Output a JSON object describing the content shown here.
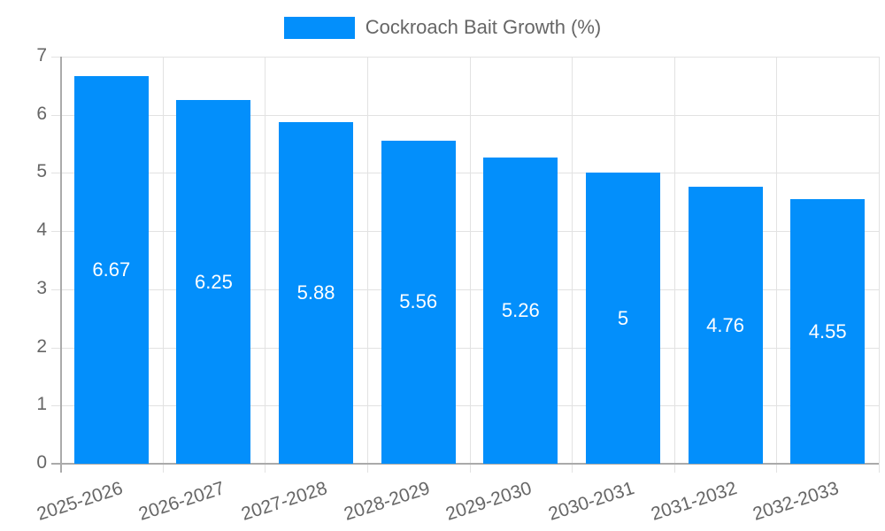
{
  "chart_data": {
    "type": "bar",
    "title": "",
    "xlabel": "",
    "ylabel": "",
    "ylim": [
      0,
      7
    ],
    "yticks": [
      0,
      1,
      2,
      3,
      4,
      5,
      6,
      7
    ],
    "grid": true,
    "legend_position": "top",
    "categories": [
      "2025-2026",
      "2026-2027",
      "2027-2028",
      "2028-2029",
      "2029-2030",
      "2030-2031",
      "2031-2032",
      "2032-2033"
    ],
    "series": [
      {
        "name": "Cockroach Bait Growth (%)",
        "color": "#038ffb",
        "values": [
          6.67,
          6.25,
          5.88,
          5.56,
          5.26,
          5,
          4.76,
          4.55
        ]
      }
    ],
    "data_labels": [
      "6.67",
      "6.25",
      "5.88",
      "5.56",
      "5.26",
      "5",
      "4.76",
      "4.55"
    ]
  },
  "legend": {
    "label": "Cockroach Bait Growth (%)"
  }
}
